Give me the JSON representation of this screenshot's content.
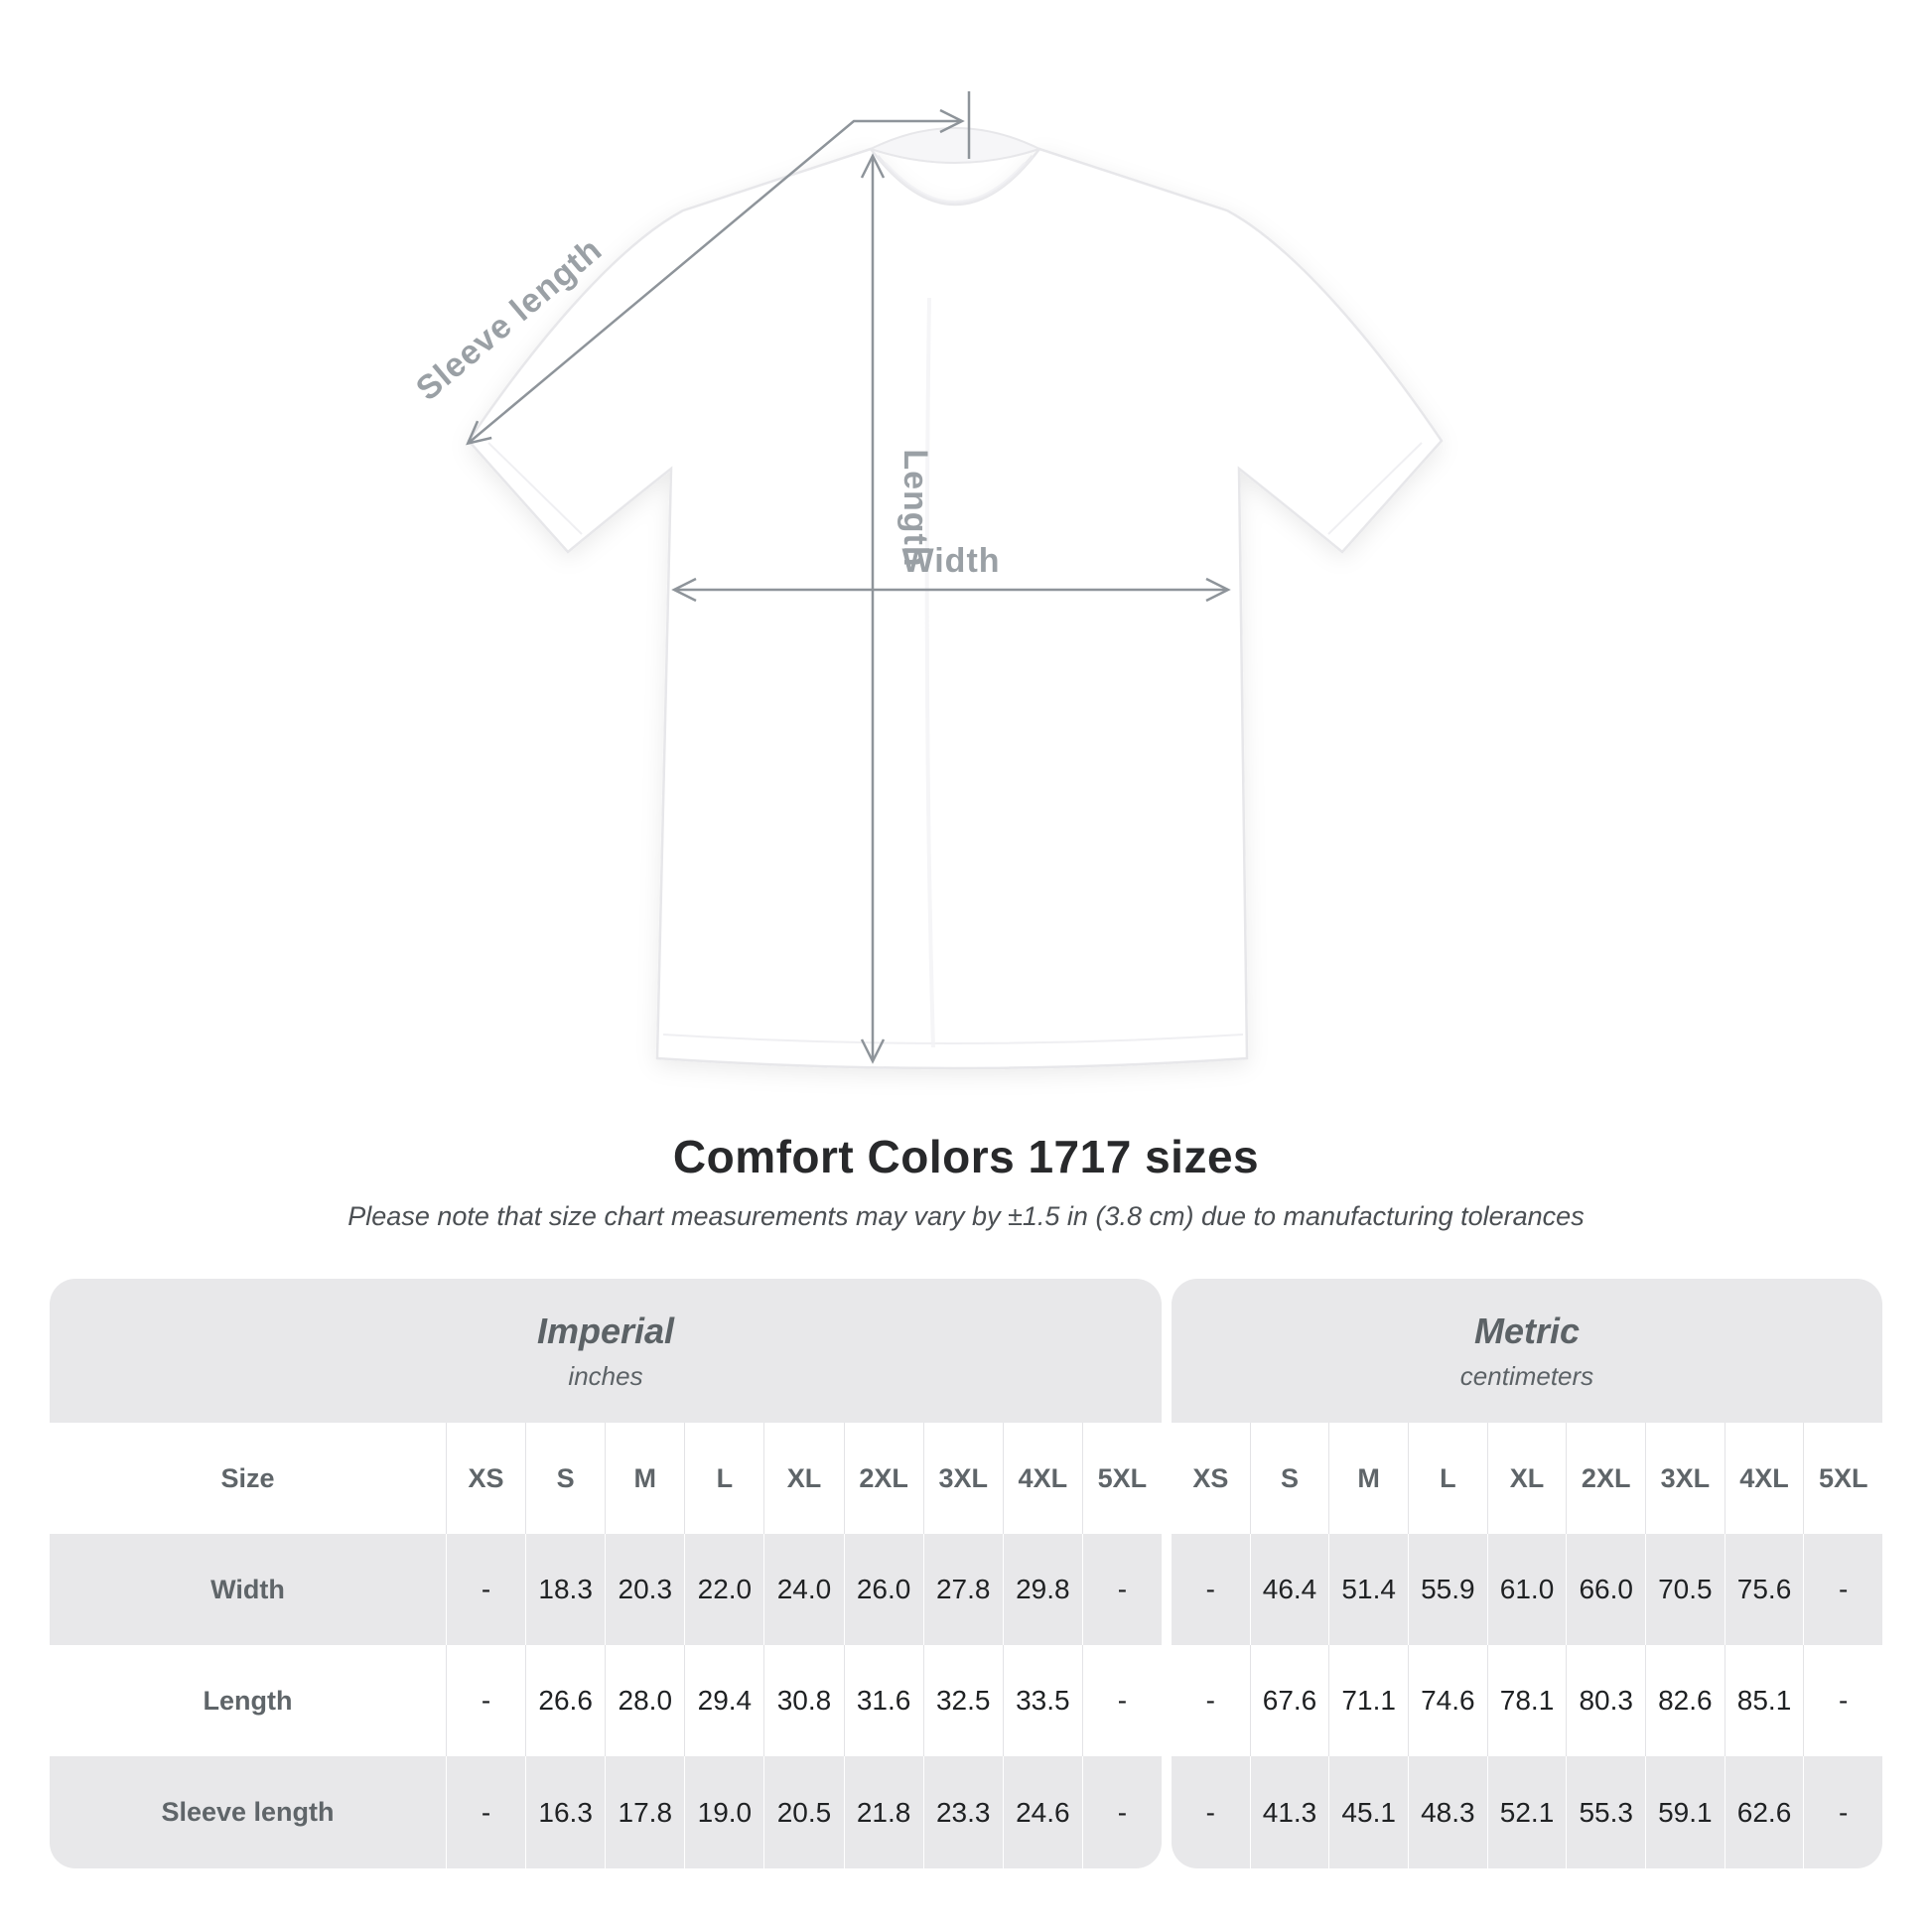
{
  "heading": {
    "title": "Comfort Colors 1717 sizes",
    "subtitle": "Please note that size chart measurements may vary by ±1.5 in (3.8 cm) due to manufacturing tolerances"
  },
  "diagram": {
    "labels": {
      "sleeve_length": "Sleeve length",
      "length": "Length",
      "width": "Width"
    },
    "annotation_color": "#8e949a"
  },
  "table": {
    "size_label": "Size",
    "sizes": [
      "XS",
      "S",
      "M",
      "L",
      "XL",
      "2XL",
      "3XL",
      "4XL",
      "5XL"
    ],
    "groups": [
      {
        "name": "Imperial",
        "unit": "inches"
      },
      {
        "name": "Metric",
        "unit": "centimeters"
      }
    ],
    "rows": [
      {
        "label": "Width",
        "imperial": [
          "-",
          "18.3",
          "20.3",
          "22.0",
          "24.0",
          "26.0",
          "27.8",
          "29.8",
          "-"
        ],
        "metric": [
          "-",
          "46.4",
          "51.4",
          "55.9",
          "61.0",
          "66.0",
          "70.5",
          "75.6",
          "-"
        ]
      },
      {
        "label": "Length",
        "imperial": [
          "-",
          "26.6",
          "28.0",
          "29.4",
          "30.8",
          "31.6",
          "32.5",
          "33.5",
          "-"
        ],
        "metric": [
          "-",
          "67.6",
          "71.1",
          "74.6",
          "78.1",
          "80.3",
          "82.6",
          "85.1",
          "-"
        ]
      },
      {
        "label": "Sleeve length",
        "imperial": [
          "-",
          "16.3",
          "17.8",
          "19.0",
          "20.5",
          "21.8",
          "23.3",
          "24.6",
          "-"
        ],
        "metric": [
          "-",
          "41.3",
          "45.1",
          "48.3",
          "52.1",
          "55.3",
          "59.1",
          "62.6",
          "-"
        ]
      }
    ],
    "colors": {
      "band": "#e8e8ea",
      "label_text": "#5f6569",
      "value_text": "#1f2123"
    }
  },
  "chart_data": {
    "type": "table",
    "title": "Comfort Colors 1717 sizes",
    "note": "Please note that size chart measurements may vary by ±1.5 in (3.8 cm) due to manufacturing tolerances",
    "column_groups": [
      {
        "name": "Imperial",
        "unit": "inches",
        "columns": [
          "XS",
          "S",
          "M",
          "L",
          "XL",
          "2XL",
          "3XL",
          "4XL",
          "5XL"
        ]
      },
      {
        "name": "Metric",
        "unit": "centimeters",
        "columns": [
          "XS",
          "S",
          "M",
          "L",
          "XL",
          "2XL",
          "3XL",
          "4XL",
          "5XL"
        ]
      }
    ],
    "rows": [
      {
        "label": "Width",
        "imperial_in": [
          null,
          18.3,
          20.3,
          22.0,
          24.0,
          26.0,
          27.8,
          29.8,
          null
        ],
        "metric_cm": [
          null,
          46.4,
          51.4,
          55.9,
          61.0,
          66.0,
          70.5,
          75.6,
          null
        ]
      },
      {
        "label": "Length",
        "imperial_in": [
          null,
          26.6,
          28.0,
          29.4,
          30.8,
          31.6,
          32.5,
          33.5,
          null
        ],
        "metric_cm": [
          null,
          67.6,
          71.1,
          74.6,
          78.1,
          80.3,
          82.6,
          85.1,
          null
        ]
      },
      {
        "label": "Sleeve length",
        "imperial_in": [
          null,
          16.3,
          17.8,
          19.0,
          20.5,
          21.8,
          23.3,
          24.6,
          null
        ],
        "metric_cm": [
          null,
          41.3,
          45.1,
          48.3,
          52.1,
          55.3,
          59.1,
          62.6,
          null
        ]
      }
    ]
  }
}
